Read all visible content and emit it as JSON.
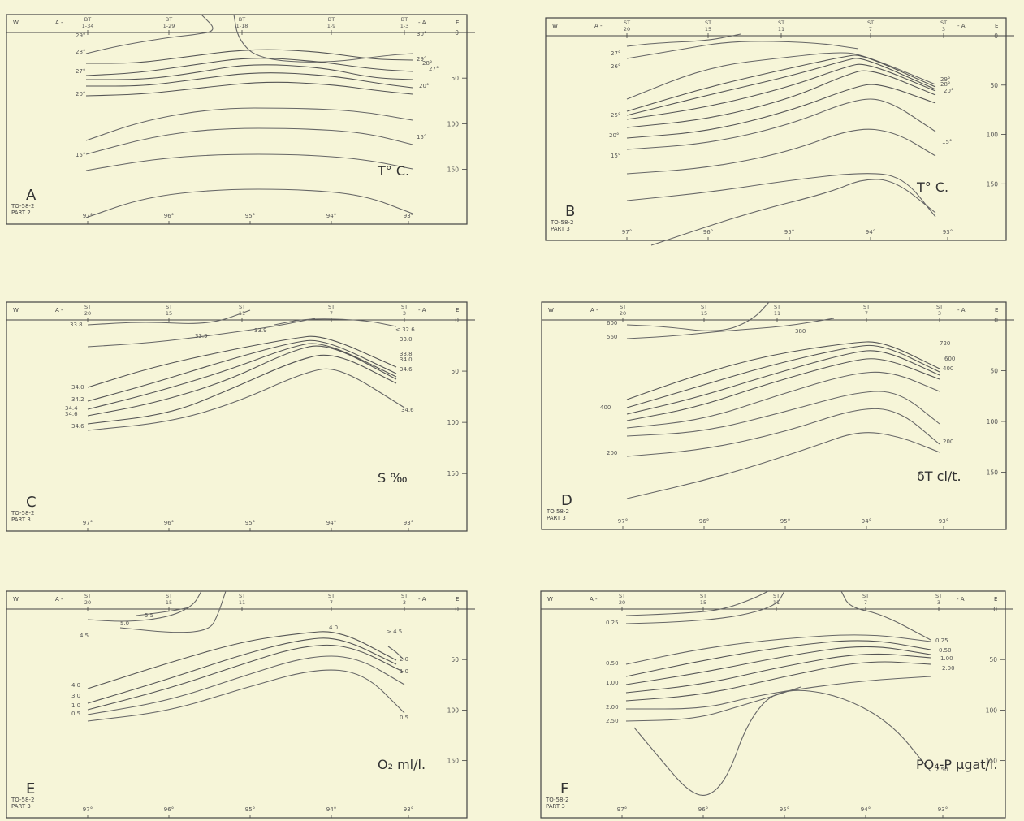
{
  "figure": {
    "panels": [
      {
        "id": "A",
        "letter": "A",
        "cruise": "TO-58-2",
        "part": "PART 2",
        "parameter": "T° C.",
        "west": "W",
        "east": "E",
        "section_start": "A -",
        "section_end": "- A",
        "stations": [
          {
            "top": "BT",
            "bottom": "1-34"
          },
          {
            "top": "BT",
            "bottom": "1-29"
          },
          {
            "top": "BT",
            "bottom": "1-18"
          },
          {
            "top": "BT",
            "bottom": "1-9"
          },
          {
            "top": "BT",
            "bottom": "1-3"
          }
        ],
        "longitudes": [
          "97°",
          "96°",
          "95°",
          "94°",
          "93°"
        ],
        "depth_labels": [
          "0",
          "50",
          "100",
          "150"
        ],
        "contour_labels": [
          {
            "text": "29°",
            "side": "left"
          },
          {
            "text": "28°",
            "side": "left"
          },
          {
            "text": "27°",
            "side": "left"
          },
          {
            "text": "20°",
            "side": "left"
          },
          {
            "text": "15°",
            "side": "left"
          },
          {
            "text": "30°",
            "side": "right"
          },
          {
            "text": "29°",
            "side": "right"
          },
          {
            "text": "28°",
            "side": "right"
          },
          {
            "text": "27°",
            "side": "right"
          },
          {
            "text": "20°",
            "side": "right"
          },
          {
            "text": "15°",
            "side": "right"
          }
        ]
      },
      {
        "id": "B",
        "letter": "B",
        "cruise": "TO-58-2",
        "part": "PART 3",
        "parameter": "T° C.",
        "west": "W",
        "east": "E",
        "section_start": "A -",
        "section_end": "- A",
        "stations": [
          {
            "top": "ST",
            "bottom": "20"
          },
          {
            "top": "ST",
            "bottom": "15"
          },
          {
            "top": "ST",
            "bottom": "11"
          },
          {
            "top": "ST",
            "bottom": "7"
          },
          {
            "top": "ST",
            "bottom": "3"
          }
        ],
        "longitudes": [
          "97°",
          "96°",
          "95°",
          "94°",
          "93°"
        ],
        "depth_labels": [
          "0",
          "50",
          "100",
          "150"
        ],
        "contour_labels": [
          {
            "text": "27°",
            "side": "left"
          },
          {
            "text": "26°",
            "side": "left"
          },
          {
            "text": "25°",
            "side": "left"
          },
          {
            "text": "20°",
            "side": "left"
          },
          {
            "text": "15°",
            "side": "left"
          },
          {
            "text": "29°",
            "side": "right"
          },
          {
            "text": "28°",
            "side": "right"
          },
          {
            "text": "20°",
            "side": "right"
          },
          {
            "text": "15°",
            "side": "right"
          }
        ]
      },
      {
        "id": "C",
        "letter": "C",
        "cruise": "TO-58-2",
        "part": "PART 3",
        "parameter": "S ‰",
        "west": "W",
        "east": "E",
        "section_start": "A -",
        "section_end": "- A",
        "stations": [
          {
            "top": "ST",
            "bottom": "20"
          },
          {
            "top": "ST",
            "bottom": "15"
          },
          {
            "top": "ST",
            "bottom": "11"
          },
          {
            "top": "ST",
            "bottom": "7"
          },
          {
            "top": "ST",
            "bottom": "3"
          }
        ],
        "longitudes": [
          "97°",
          "96°",
          "95°",
          "94°",
          "93°"
        ],
        "depth_labels": [
          "0",
          "50",
          "100",
          "150"
        ],
        "contour_labels": [
          {
            "text": "33.8",
            "side": "left"
          },
          {
            "text": "33.9",
            "side": "top"
          },
          {
            "text": "33.9",
            "side": "top"
          },
          {
            "text": "34.0",
            "side": "left"
          },
          {
            "text": "34.2",
            "side": "left"
          },
          {
            "text": "34.4",
            "side": "left"
          },
          {
            "text": "34.6",
            "side": "left"
          },
          {
            "text": "34.6",
            "side": "left"
          },
          {
            "text": "< 32.6",
            "side": "right"
          },
          {
            "text": "33.0",
            "side": "right"
          },
          {
            "text": "33.8",
            "side": "right"
          },
          {
            "text": "34.0",
            "side": "right"
          },
          {
            "text": "34.6",
            "side": "right"
          },
          {
            "text": "34.6",
            "side": "right"
          }
        ]
      },
      {
        "id": "D",
        "letter": "D",
        "cruise": "TO 58-2",
        "part": "PART 3",
        "parameter": "δT cl/t.",
        "west": "W",
        "east": "E",
        "section_start": "A -",
        "section_end": "- A",
        "stations": [
          {
            "top": "ST",
            "bottom": "20"
          },
          {
            "top": "ST",
            "bottom": "15"
          },
          {
            "top": "ST",
            "bottom": "11"
          },
          {
            "top": "ST",
            "bottom": "7"
          },
          {
            "top": "ST",
            "bottom": "3"
          }
        ],
        "longitudes": [
          "97°",
          "96°",
          "95°",
          "94°",
          "93°"
        ],
        "depth_labels": [
          "0",
          "50",
          "100",
          "150"
        ],
        "contour_labels": [
          {
            "text": "600",
            "side": "left"
          },
          {
            "text": "560",
            "side": "left"
          },
          {
            "text": "380",
            "side": "top"
          },
          {
            "text": "400",
            "side": "left"
          },
          {
            "text": "200",
            "side": "left"
          },
          {
            "text": "720",
            "side": "right"
          },
          {
            "text": "600",
            "side": "right"
          },
          {
            "text": "400",
            "side": "right"
          },
          {
            "text": "200",
            "side": "right"
          }
        ]
      },
      {
        "id": "E",
        "letter": "E",
        "cruise": "TO-58-2",
        "part": "PART 3",
        "parameter": "O₂ ml/l.",
        "west": "W",
        "east": "E",
        "section_start": "A -",
        "section_end": "- A",
        "stations": [
          {
            "top": "ST",
            "bottom": "20"
          },
          {
            "top": "ST",
            "bottom": "15"
          },
          {
            "top": "ST",
            "bottom": "11"
          },
          {
            "top": "ST",
            "bottom": "7"
          },
          {
            "top": "ST",
            "bottom": "3"
          }
        ],
        "longitudes": [
          "97°",
          "96°",
          "95°",
          "94°",
          "93°"
        ],
        "depth_labels": [
          "0",
          "50",
          "100",
          "150"
        ],
        "contour_labels": [
          {
            "text": "5.5",
            "side": "top"
          },
          {
            "text": "5.0",
            "side": "top"
          },
          {
            "text": "4.5",
            "side": "left"
          },
          {
            "text": "4.0",
            "side": "top"
          },
          {
            "text": "> 4.5",
            "side": "right"
          },
          {
            "text": "2.0",
            "side": "right"
          },
          {
            "text": "1.0",
            "side": "right"
          },
          {
            "text": "4.0",
            "side": "left"
          },
          {
            "text": "3.0",
            "side": "left"
          },
          {
            "text": "1.0",
            "side": "left"
          },
          {
            "text": "0.5",
            "side": "left"
          },
          {
            "text": "0.5",
            "side": "right"
          }
        ]
      },
      {
        "id": "F",
        "letter": "F",
        "cruise": "TO-58-2",
        "part": "PART 3",
        "parameter": "PO₄-P µgat/l.",
        "west": "W",
        "east": "E",
        "section_start": "A -",
        "section_end": "- A",
        "stations": [
          {
            "top": "ST",
            "bottom": "20"
          },
          {
            "top": "ST",
            "bottom": "15"
          },
          {
            "top": "ST",
            "bottom": "11"
          },
          {
            "top": "ST",
            "bottom": "7"
          },
          {
            "top": "ST",
            "bottom": "3"
          }
        ],
        "longitudes": [
          "97°",
          "96°",
          "95°",
          "94°",
          "93°"
        ],
        "depth_labels": [
          "0",
          "50",
          "100",
          "150"
        ],
        "contour_labels": [
          {
            "text": "0.25",
            "side": "left"
          },
          {
            "text": "0.50",
            "side": "left"
          },
          {
            "text": "1.00",
            "side": "left"
          },
          {
            "text": "2.00",
            "side": "left"
          },
          {
            "text": "2.50",
            "side": "left"
          },
          {
            "text": "0.25",
            "side": "right"
          },
          {
            "text": "0.50",
            "side": "right"
          },
          {
            "text": "1.00",
            "side": "right"
          },
          {
            "text": "2.00",
            "side": "right"
          },
          {
            "text": "2.50",
            "side": "right"
          }
        ]
      }
    ]
  },
  "chart_data": [
    {
      "type": "heatmap",
      "panel": "A",
      "x_axis": "longitude",
      "x_ticks": [
        "97°",
        "96°",
        "95°",
        "94°",
        "93°"
      ],
      "y_axis": "depth",
      "y_ticks": [
        0,
        50,
        100,
        150
      ],
      "ylim": [
        0,
        170
      ],
      "y_inverted": true,
      "variable": "T° C.",
      "contour_levels": [
        30,
        29,
        28,
        27,
        20,
        15
      ]
    },
    {
      "type": "heatmap",
      "panel": "B",
      "x_axis": "longitude",
      "x_ticks": [
        "97°",
        "96°",
        "95°",
        "94°",
        "93°"
      ],
      "y_axis": "depth",
      "y_ticks": [
        0,
        50,
        100,
        150
      ],
      "ylim": [
        0,
        170
      ],
      "y_inverted": true,
      "variable": "T° C.",
      "contour_levels": [
        29,
        28,
        27,
        26,
        25,
        20,
        15
      ]
    },
    {
      "type": "heatmap",
      "panel": "C",
      "x_axis": "longitude",
      "x_ticks": [
        "97°",
        "96°",
        "95°",
        "94°",
        "93°"
      ],
      "y_axis": "depth",
      "y_ticks": [
        0,
        50,
        100,
        150
      ],
      "ylim": [
        0,
        170
      ],
      "y_inverted": true,
      "variable": "S ‰",
      "contour_levels": [
        32.6,
        33.0,
        33.8,
        33.9,
        34.0,
        34.2,
        34.4,
        34.6
      ]
    },
    {
      "type": "heatmap",
      "panel": "D",
      "x_axis": "longitude",
      "x_ticks": [
        "97°",
        "96°",
        "95°",
        "94°",
        "93°"
      ],
      "y_axis": "depth",
      "y_ticks": [
        0,
        50,
        100,
        150
      ],
      "ylim": [
        0,
        170
      ],
      "y_inverted": true,
      "variable": "δT cl/t.",
      "contour_levels": [
        720,
        600,
        560,
        400,
        380,
        200
      ]
    },
    {
      "type": "heatmap",
      "panel": "E",
      "x_axis": "longitude",
      "x_ticks": [
        "97°",
        "96°",
        "95°",
        "94°",
        "93°"
      ],
      "y_axis": "depth",
      "y_ticks": [
        0,
        50,
        100,
        150
      ],
      "ylim": [
        0,
        170
      ],
      "y_inverted": true,
      "variable": "O₂ ml/l.",
      "contour_levels": [
        5.5,
        5.0,
        4.5,
        4.0,
        3.0,
        2.0,
        1.0,
        0.5
      ]
    },
    {
      "type": "heatmap",
      "panel": "F",
      "x_axis": "longitude",
      "x_ticks": [
        "97°",
        "96°",
        "95°",
        "94°",
        "93°"
      ],
      "y_axis": "depth",
      "y_ticks": [
        0,
        50,
        100,
        150
      ],
      "ylim": [
        0,
        170
      ],
      "y_inverted": true,
      "variable": "PO₄-P µgat/l.",
      "contour_levels": [
        0.25,
        0.5,
        1.0,
        2.0,
        2.5
      ]
    }
  ]
}
